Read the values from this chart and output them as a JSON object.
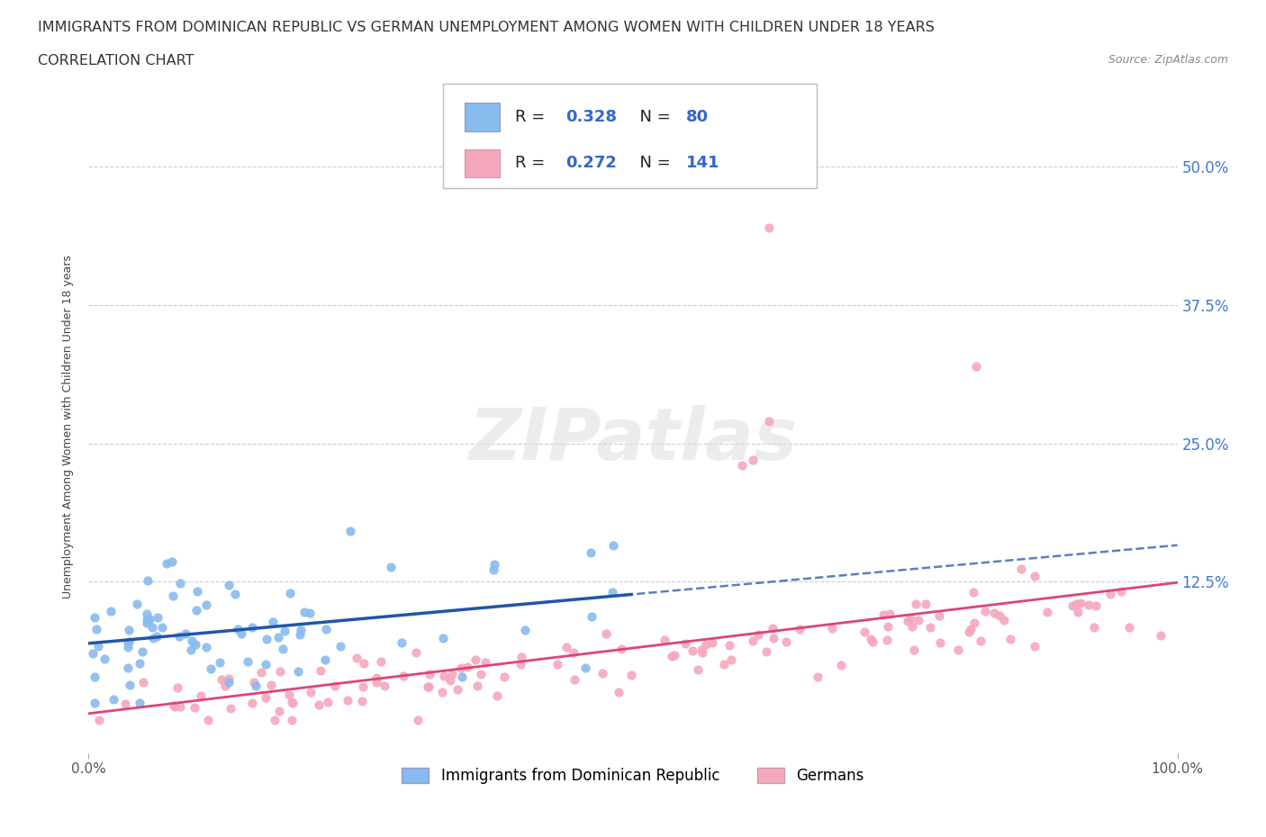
{
  "title_line1": "IMMIGRANTS FROM DOMINICAN REPUBLIC VS GERMAN UNEMPLOYMENT AMONG WOMEN WITH CHILDREN UNDER 18 YEARS",
  "title_line2": "CORRELATION CHART",
  "source_text": "Source: ZipAtlas.com",
  "ylabel": "Unemployment Among Women with Children Under 18 years",
  "xlim": [
    0,
    1.0
  ],
  "ylim": [
    -0.03,
    0.56
  ],
  "ytick_positions": [
    0.125,
    0.25,
    0.375,
    0.5
  ],
  "ytick_labels": [
    "12.5%",
    "25.0%",
    "37.5%",
    "50.0%"
  ],
  "grid_color": "#cccccc",
  "background_color": "#ffffff",
  "blue_color": "#88bbee",
  "pink_color": "#f5a8bc",
  "blue_line_color": "#2255aa",
  "pink_line_color": "#dd4477",
  "R_blue": 0.328,
  "N_blue": 80,
  "R_pink": 0.272,
  "N_pink": 141,
  "legend_label_blue": "Immigrants from Dominican Republic",
  "legend_label_pink": "Germans",
  "watermark": "ZIPatlas",
  "title_fontsize": 11.5,
  "axis_label_fontsize": 9,
  "tick_fontsize": 11,
  "blue_line_intercept": 0.068,
  "blue_line_slope": 0.1,
  "pink_line_intercept": 0.018,
  "pink_line_slope": 0.105
}
